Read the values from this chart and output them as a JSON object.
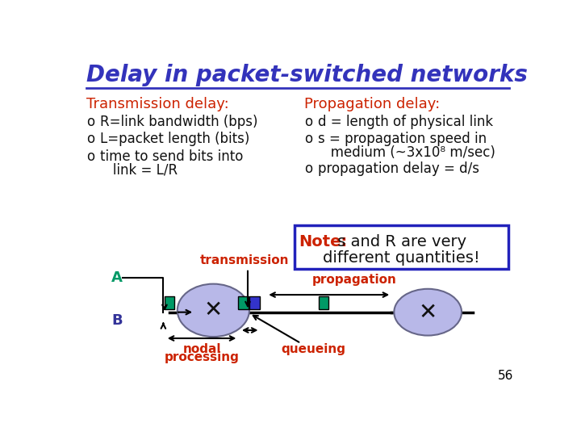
{
  "title": "Delay in packet-switched networks",
  "title_color": "#3333bb",
  "title_fontsize": 20,
  "bg_color": "#ffffff",
  "left_header": "Transmission delay:",
  "left_items": [
    "R=link bandwidth (bps)",
    "L=packet length (bits)",
    "time to send bits into",
    "   link = L/R"
  ],
  "right_header": "Propagation delay:",
  "right_items": [
    "d = length of physical link",
    "s = propagation speed in",
    "   medium (~3x10⁸ m/sec)",
    "propagation delay = d/s"
  ],
  "header_color": "#cc2200",
  "bullet_color": "#111111",
  "note_label": "Note:",
  "note_rest_line1": " s and R are very",
  "note_line2": "different quantities!",
  "note_label_color": "#cc2200",
  "note_rest_color": "#111111",
  "note_border_color": "#2222bb",
  "label_A_color": "#009966",
  "label_B_color": "#333399",
  "label_transmission": "transmission",
  "label_propagation": "propagation",
  "label_nodal": "nodal",
  "label_processing": "processing",
  "label_queueing": "queueing",
  "label_color_diagram": "#cc2200",
  "node_color": "#b8b8e8",
  "node_edge": "#666688",
  "rect_color": "#009966",
  "blue_rect_color": "#3333cc",
  "page_num": "56"
}
